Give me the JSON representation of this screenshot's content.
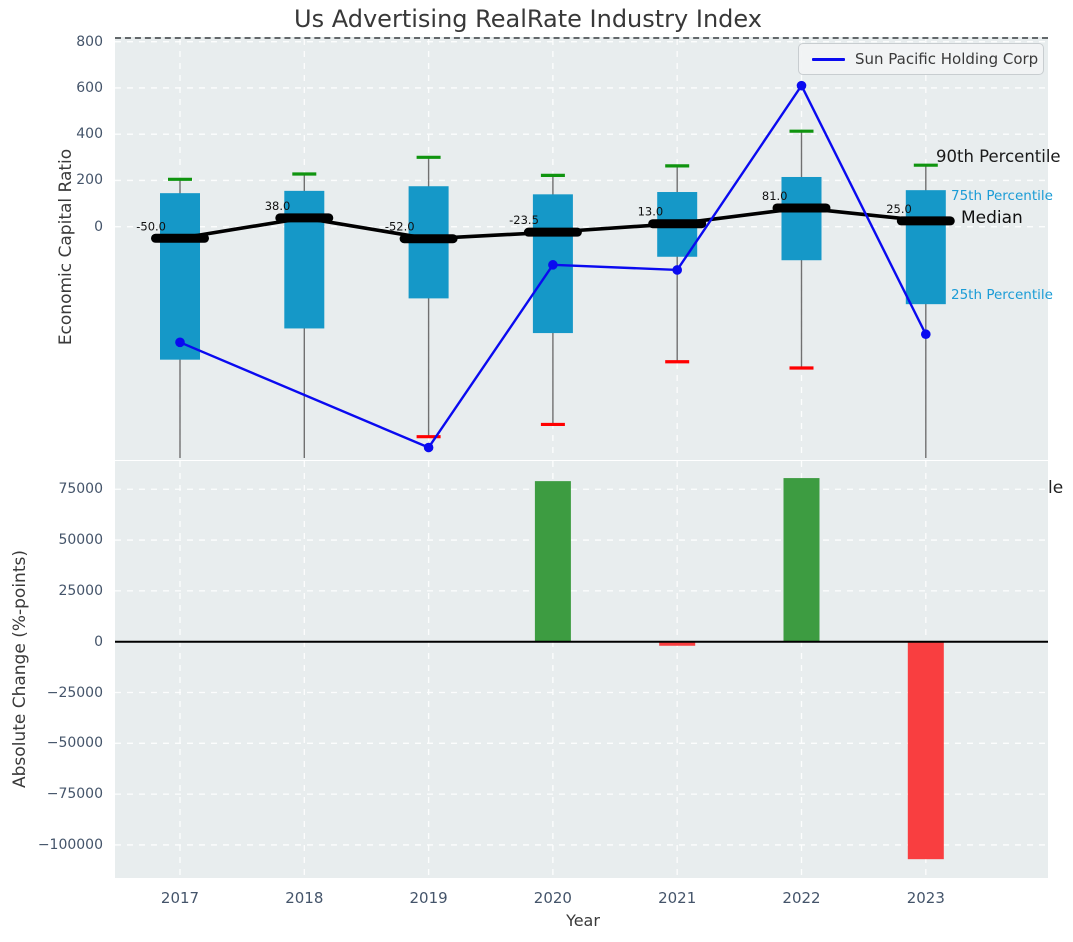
{
  "colors": {
    "box_fill": "#1598c8",
    "whisker": "#707070",
    "cap_90th": "#0f940f",
    "cap_10th": "#ff0000",
    "median": "#000000",
    "company_line": "#0a0af0",
    "bar_positive": "#3d9c41",
    "bar_negative": "#f93e40",
    "plot_background": "#e8edee",
    "grid": "#ffffff",
    "tick_text": "#44546a",
    "percentile_75_25_text": "#1b9cd6"
  },
  "chart_data": [
    {
      "type": "box",
      "title": "Us Advertising RealRate Industry Index",
      "ylabel": "Economic Capital Ratio",
      "legend": "Sun Pacific Holding Corp",
      "categories": [
        "2017",
        "2018",
        "2019",
        "2020",
        "2021",
        "2022",
        "2023"
      ],
      "ylim": [
        -1000,
        800
      ],
      "yticks": [
        {
          "v": 800,
          "label": "800"
        },
        {
          "v": 600,
          "label": "600"
        },
        {
          "v": 400,
          "label": "400"
        },
        {
          "v": 200,
          "label": "200"
        },
        {
          "v": 0,
          "label": "0"
        }
      ],
      "grid": "white dashed, horizontal only at ticks >= 0, vertical at each year",
      "legend_position": "upper right",
      "series": {
        "median": [
          -50.0,
          38.0,
          -52.0,
          -23.5,
          13.0,
          81.0,
          25.0
        ],
        "q3_75th": [
          145,
          155,
          175,
          140,
          150,
          215,
          158
        ],
        "q1_25th": [
          -575,
          -440,
          -310,
          -460,
          -130,
          -145,
          -335
        ],
        "p90": [
          205,
          228,
          300,
          222,
          263,
          413,
          266
        ],
        "p10": [
          null,
          null,
          -908,
          -855,
          -584,
          -611,
          null
        ],
        "sun_pacific_holding_corp": [
          -500,
          null,
          -955,
          -165,
          -187,
          610,
          -465
        ]
      },
      "annotations": {
        "p90": "90th Percentile",
        "p75": "75th Percentile",
        "median": "Median",
        "p25": "25th Percentile",
        "p10_clipped": "le"
      }
    },
    {
      "type": "bar",
      "xlabel": "Year",
      "ylabel": "Absolute Change (%-points)",
      "categories": [
        "2017",
        "2018",
        "2019",
        "2020",
        "2021",
        "2022",
        "2023"
      ],
      "values": [
        null,
        null,
        null,
        79000,
        -2000,
        80500,
        -107000
      ],
      "ylim": [
        -116300,
        89500
      ],
      "yticks": [
        {
          "v": 75000,
          "label": "75000"
        },
        {
          "v": 50000,
          "label": "50000"
        },
        {
          "v": 25000,
          "label": "25000"
        },
        {
          "v": 0,
          "label": "0"
        },
        {
          "v": -25000,
          "label": "−25000"
        },
        {
          "v": -50000,
          "label": "−50000"
        },
        {
          "v": -75000,
          "label": "−75000"
        },
        {
          "v": -100000,
          "label": "−100000"
        }
      ],
      "zero_line": true,
      "grid": "white dashed at all ticks and years"
    }
  ]
}
